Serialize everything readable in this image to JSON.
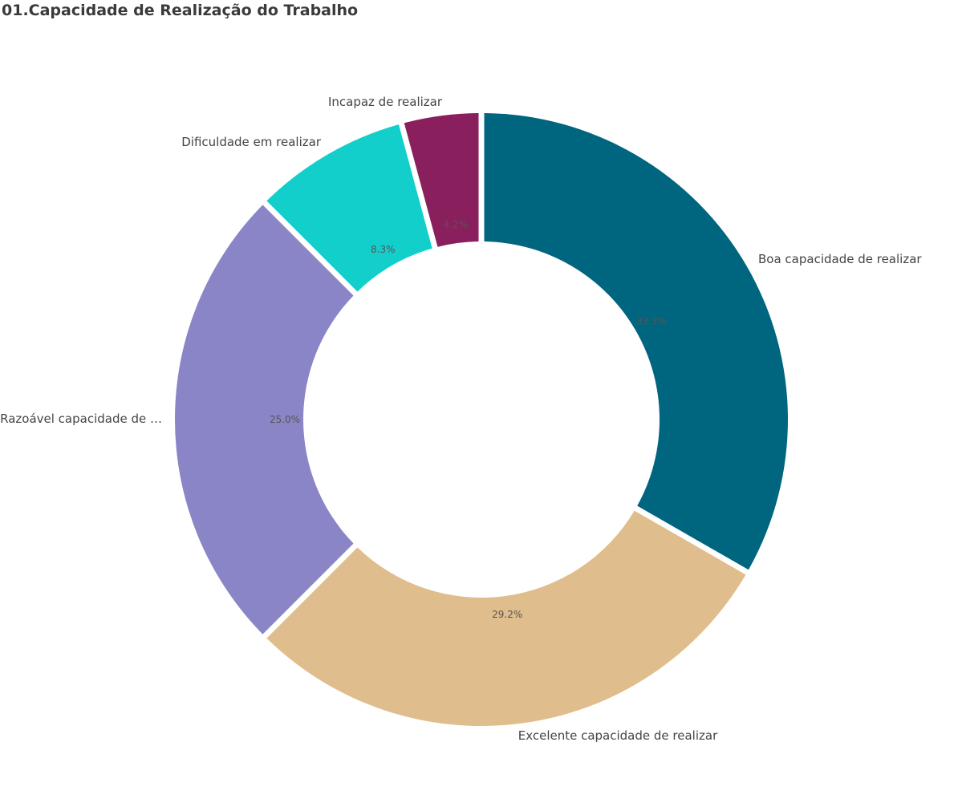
{
  "title": "01.Capacidade de Realização do Trabalho",
  "chart_data": {
    "type": "pie",
    "variant": "donut",
    "title": "01.Capacidade de Realização do Trabalho",
    "start": "12 o'clock",
    "direction": "clockwise",
    "slices": [
      {
        "label": "Boa capacidade de realizar",
        "value": 33.3,
        "value_label": "33.3%",
        "color": "#00657f"
      },
      {
        "label": "Excelente capacidade de realizar",
        "value": 29.2,
        "value_label": "29.2%",
        "color": "#dfbd8c"
      },
      {
        "label": "Razoável capacidade de …",
        "value": 25.0,
        "value_label": "25.0%",
        "color": "#8a85c6"
      },
      {
        "label": "Dificuldade em realizar",
        "value": 8.3,
        "value_label": "8.3%",
        "color": "#13cfcb"
      },
      {
        "label": "Incapaz de realizar",
        "value": 4.2,
        "value_label": "4.2%",
        "color": "#891f5d"
      }
    ]
  }
}
